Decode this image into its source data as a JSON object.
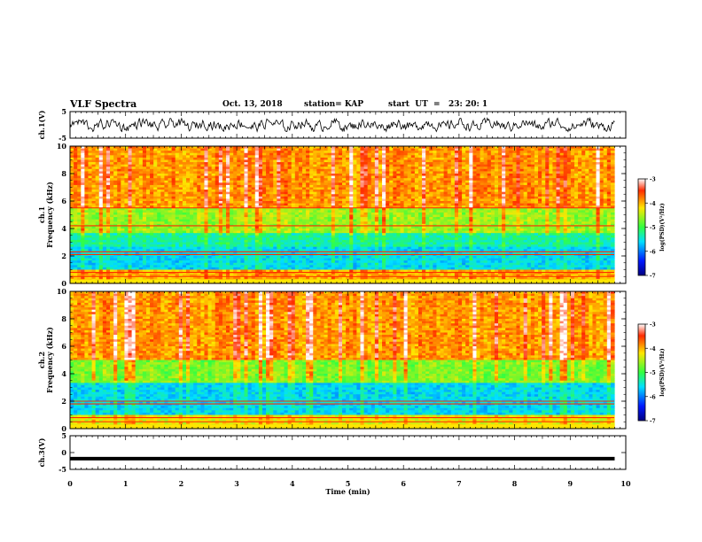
{
  "header": {
    "title": "VLF Spectra",
    "date": "Oct. 13, 2018",
    "station": "station= KAP",
    "start": "start  UT  =   23: 20: 1"
  },
  "colors": {
    "spectrogram_red": "#ff2a00",
    "spectrogram_yellow": "#ffe600",
    "spectrogram_green": "#32ff40",
    "spectrogram_cyan": "#00e0ff",
    "spectrogram_blue": "#0018ff"
  },
  "chart_data": [
    {
      "type": "line",
      "panel": "ch1-waveform",
      "ylabel": "ch.1(V)",
      "ylim": [
        -5,
        5
      ],
      "yticks": [
        "5",
        "-5"
      ],
      "xlim": [
        0,
        10
      ],
      "note_values": "noisy waveform oscillating roughly between -2.5 and 2.5 V",
      "series": [
        {
          "values_range": [
            -2.5,
            2.5
          ]
        }
      ]
    },
    {
      "type": "heatmap",
      "panel": "ch1-spectrogram",
      "ylabel_line1": "ch.1",
      "ylabel_line2": "Frequency (kHz)",
      "ylim": [
        0,
        10
      ],
      "yticks": [
        "0",
        "2",
        "4",
        "6",
        "8",
        "10"
      ],
      "xlim": [
        0,
        9.8
      ],
      "colorbar": {
        "label": "log(PSD)(V²/Hz)",
        "range": [
          -7,
          -3
        ],
        "ticks": [
          "-3",
          "-4",
          "-5",
          "-6",
          "-7"
        ]
      },
      "bands": [
        {
          "from": 0,
          "to": 1.0,
          "level": -4.0
        },
        {
          "from": 1.0,
          "to": 2.6,
          "level": -5.6
        },
        {
          "from": 2.6,
          "to": 3.6,
          "level": -5.3
        },
        {
          "from": 3.6,
          "to": 5.5,
          "level": -4.6
        },
        {
          "from": 5.5,
          "to": 10,
          "level": -3.9
        }
      ],
      "lines_khz": [
        0.5,
        0.8,
        2.1,
        2.3,
        4.2,
        5.5
      ]
    },
    {
      "type": "heatmap",
      "panel": "ch2-spectrogram",
      "ylabel_line1": "ch.2",
      "ylabel_line2": "Frequency (kHz)",
      "ylim": [
        0,
        10
      ],
      "yticks": [
        "0",
        "2",
        "4",
        "6",
        "8",
        "10"
      ],
      "xlim": [
        0,
        9.8
      ],
      "colorbar": {
        "label": "log(PSD)(V²/Hz)",
        "range": [
          -7,
          -3
        ],
        "ticks": [
          "-3",
          "-4",
          "-5",
          "-6",
          "-7"
        ]
      },
      "bands": [
        {
          "from": 0,
          "to": 1.0,
          "level": -4.3
        },
        {
          "from": 1.0,
          "to": 3.3,
          "level": -5.6
        },
        {
          "from": 3.3,
          "to": 5.0,
          "level": -4.7
        },
        {
          "from": 5.0,
          "to": 10,
          "level": -3.9
        }
      ],
      "lines_khz": [
        0.5,
        0.8,
        1.8,
        2.0
      ]
    },
    {
      "type": "line",
      "panel": "ch3-waveform",
      "ylabel": "ch.3(V)",
      "ylim": [
        -5,
        5
      ],
      "yticks": [
        "5",
        "0",
        "-5"
      ],
      "xlim": [
        0,
        10
      ],
      "series": [
        {
          "constant": -1.8
        }
      ]
    }
  ],
  "xaxis": {
    "label": "Time  (min)",
    "ticks": [
      "0",
      "1",
      "2",
      "3",
      "4",
      "5",
      "6",
      "7",
      "8",
      "9",
      "10"
    ]
  }
}
